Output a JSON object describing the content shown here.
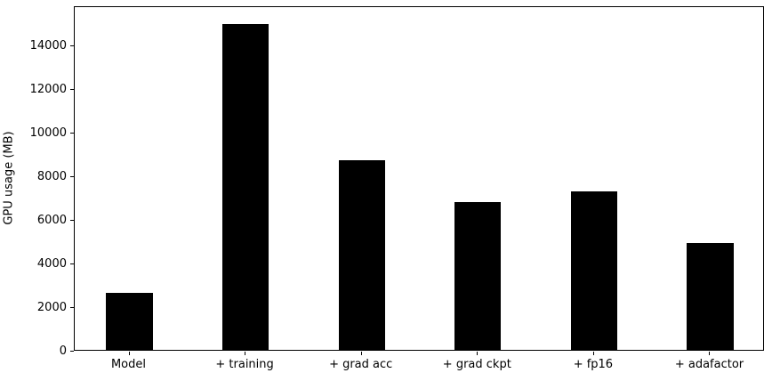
{
  "chart_data": {
    "type": "bar",
    "title": "",
    "xlabel": "",
    "ylabel": "GPU usage (MB)",
    "categories": [
      "Model",
      "+ training",
      "+ grad acc",
      "+ grad ckpt",
      "+ fp16",
      "+ adafactor"
    ],
    "values": [
      2600,
      15000,
      8700,
      6800,
      7300,
      4900
    ],
    "ylim": [
      0,
      15840
    ],
    "yticks": [
      0,
      2000,
      4000,
      6000,
      8000,
      10000,
      12000,
      14000
    ],
    "xlim": [
      -0.471,
      5.471
    ],
    "bar_width_fraction": 0.4,
    "bar_color": "#000000",
    "text_color": "#000000",
    "background_color": "#ffffff",
    "grid": false,
    "legend": null
  }
}
